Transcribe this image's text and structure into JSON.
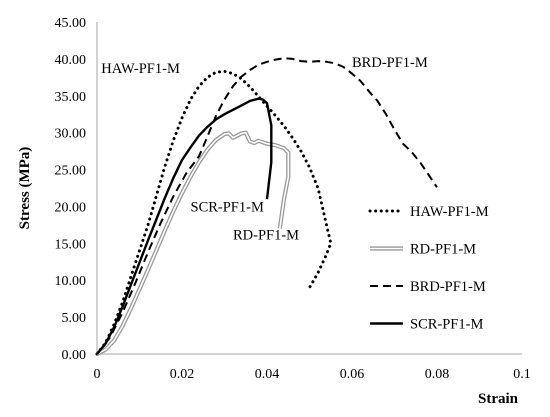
{
  "chart_data": {
    "type": "line",
    "title": "",
    "xlabel": "Strain",
    "ylabel": "Stress  (MPa)",
    "xlim": [
      0,
      0.1
    ],
    "ylim": [
      0,
      45
    ],
    "grid": false,
    "legend_position": "right",
    "x_ticks": [
      "0",
      "0.02",
      "0.04",
      "0.06",
      "0.08",
      "0.1"
    ],
    "y_ticks": [
      "0.00",
      "5.00",
      "10.00",
      "15.00",
      "20.00",
      "25.00",
      "30.00",
      "35.00",
      "40.00",
      "45.00"
    ],
    "annotations": [
      {
        "text": "HAW-PF1-M",
        "x": 0.001,
        "y": 38.1
      },
      {
        "text": "BRD-PF1-M",
        "x": 0.06,
        "y": 38.9
      },
      {
        "text": "SCR-PF1-M",
        "x": 0.022,
        "y": 19.3
      },
      {
        "text": "RD-PF1-M",
        "x": 0.032,
        "y": 15.5
      }
    ],
    "series": [
      {
        "name": "HAW-PF1-M",
        "style": "dotted",
        "color": "#000000",
        "x": [
          0,
          0.002,
          0.004,
          0.006,
          0.008,
          0.01,
          0.012,
          0.014,
          0.016,
          0.018,
          0.02,
          0.022,
          0.024,
          0.026,
          0.028,
          0.03,
          0.032,
          0.034,
          0.036,
          0.038,
          0.04,
          0.042,
          0.044,
          0.046,
          0.048,
          0.05,
          0.052,
          0.054,
          0.055,
          0.054,
          0.052,
          0.05
        ],
        "y": [
          0,
          1.5,
          4,
          7,
          10.5,
          14,
          17.5,
          21.5,
          25.5,
          29,
          32,
          34.5,
          36.3,
          37.5,
          38.2,
          38.3,
          38.0,
          37.3,
          36.2,
          34.9,
          33.6,
          32.3,
          30.9,
          29.3,
          27.5,
          25.3,
          22.5,
          17.5,
          15,
          13.5,
          11,
          9
        ]
      },
      {
        "name": "RD-PF1-M",
        "style": "double",
        "color": "#999999",
        "x": [
          0,
          0.002,
          0.004,
          0.006,
          0.008,
          0.01,
          0.012,
          0.014,
          0.016,
          0.018,
          0.02,
          0.022,
          0.024,
          0.026,
          0.028,
          0.03,
          0.031,
          0.032,
          0.033,
          0.034,
          0.035,
          0.036,
          0.037,
          0.038,
          0.04,
          0.042,
          0.044,
          0.045,
          0.045,
          0.044,
          0.043
        ],
        "y": [
          0,
          0.6,
          1.8,
          3.8,
          6.2,
          8.8,
          11.4,
          14.1,
          16.8,
          19.4,
          21.8,
          24.0,
          26.0,
          27.7,
          29.0,
          29.8,
          29.9,
          29.3,
          29.6,
          29.9,
          30.0,
          28.8,
          28.6,
          28.9,
          28.5,
          28.3,
          27.9,
          27.3,
          24,
          21,
          17
        ]
      },
      {
        "name": "BRD-PF1-M",
        "style": "dashed",
        "color": "#000000",
        "x": [
          0,
          0.003,
          0.006,
          0.009,
          0.012,
          0.015,
          0.018,
          0.021,
          0.024,
          0.026,
          0.028,
          0.03,
          0.032,
          0.034,
          0.036,
          0.038,
          0.04,
          0.042,
          0.044,
          0.046,
          0.048,
          0.05,
          0.052,
          0.054,
          0.056,
          0.058,
          0.06,
          0.062,
          0.064,
          0.066,
          0.068,
          0.07,
          0.072,
          0.074,
          0.076,
          0.078,
          0.08
        ],
        "y": [
          0,
          2.2,
          5.6,
          9.6,
          13.8,
          17.8,
          21.4,
          24.5,
          26.8,
          29.5,
          32.3,
          34.5,
          36.3,
          37.6,
          38.5,
          39.2,
          39.6,
          39.9,
          40.1,
          40.0,
          39.7,
          39.6,
          39.7,
          39.6,
          39.4,
          38.9,
          38.0,
          37.0,
          35.6,
          34.3,
          32.5,
          30.4,
          28.5,
          27.4,
          26.0,
          24.3,
          22.6
        ]
      },
      {
        "name": "SCR-PF1-M",
        "style": "solid",
        "color": "#000000",
        "x": [
          0,
          0.002,
          0.004,
          0.006,
          0.008,
          0.01,
          0.012,
          0.014,
          0.016,
          0.018,
          0.02,
          0.022,
          0.024,
          0.026,
          0.028,
          0.03,
          0.032,
          0.034,
          0.036,
          0.038,
          0.039,
          0.04,
          0.041,
          0.041,
          0.04
        ],
        "y": [
          0,
          1.4,
          3.6,
          6.4,
          9.4,
          12.4,
          15.4,
          18.3,
          21.2,
          23.9,
          26.3,
          28.0,
          29.6,
          30.8,
          31.8,
          32.5,
          33.1,
          33.7,
          34.3,
          34.6,
          34.5,
          34.0,
          31.0,
          26.0,
          21.0
        ]
      }
    ]
  }
}
